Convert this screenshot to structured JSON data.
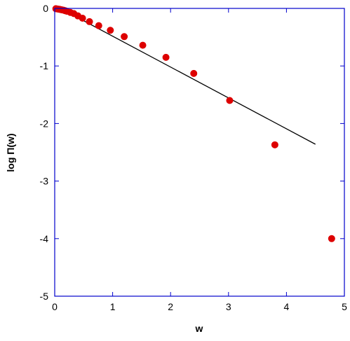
{
  "chart_data": {
    "type": "scatter",
    "title": "",
    "xlabel": "w",
    "ylabel": "log Π(w)",
    "xlim": [
      0,
      5
    ],
    "ylim": [
      -5,
      0
    ],
    "x_ticks": [
      0,
      1,
      2,
      3,
      4,
      5
    ],
    "y_ticks": [
      0,
      -1,
      -2,
      -3,
      -4,
      -5
    ],
    "x_tick_labels": [
      "0",
      "1",
      "2",
      "3",
      "4",
      "5"
    ],
    "y_tick_labels": [
      "0",
      "-1",
      "-2",
      "-3",
      "-4",
      "-5"
    ],
    "grid": false,
    "legend": "none",
    "colors": {
      "points": "#dd0000",
      "line": "#000000",
      "axes": "#0000cc"
    },
    "series": [
      {
        "kind": "points",
        "x": [
          0.02,
          0.05,
          0.08,
          0.1,
          0.12,
          0.15,
          0.18,
          0.21,
          0.27,
          0.33,
          0.4,
          0.48,
          0.6,
          0.76,
          0.96,
          1.2,
          1.52,
          1.92,
          2.4,
          3.02,
          3.8,
          4.78
        ],
        "y": [
          -0.005,
          -0.01,
          -0.015,
          -0.02,
          -0.025,
          -0.03,
          -0.04,
          -0.05,
          -0.07,
          -0.09,
          -0.13,
          -0.17,
          -0.23,
          -0.3,
          -0.38,
          -0.49,
          -0.64,
          -0.85,
          -1.13,
          -1.6,
          -2.37,
          -4.0
        ]
      },
      {
        "kind": "line",
        "x": [
          0.1,
          4.5
        ],
        "y": [
          0.0,
          -2.36
        ]
      }
    ]
  }
}
